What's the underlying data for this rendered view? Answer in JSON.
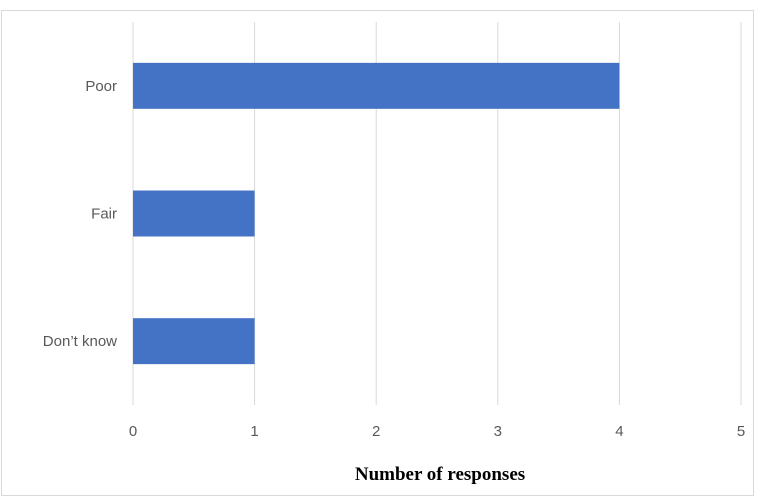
{
  "chart_data": {
    "type": "bar",
    "orientation": "horizontal",
    "categories": [
      "Poor",
      "Fair",
      "Don’t know"
    ],
    "values": [
      4,
      1,
      1
    ],
    "xlabel": "Number of responses",
    "ylabel": "",
    "xlim": [
      0,
      5
    ],
    "xticks": [
      "0",
      "1",
      "2",
      "3",
      "4",
      "5"
    ],
    "grid": true,
    "bar_color": "#4472c4",
    "grid_color": "#d9d9d9"
  }
}
